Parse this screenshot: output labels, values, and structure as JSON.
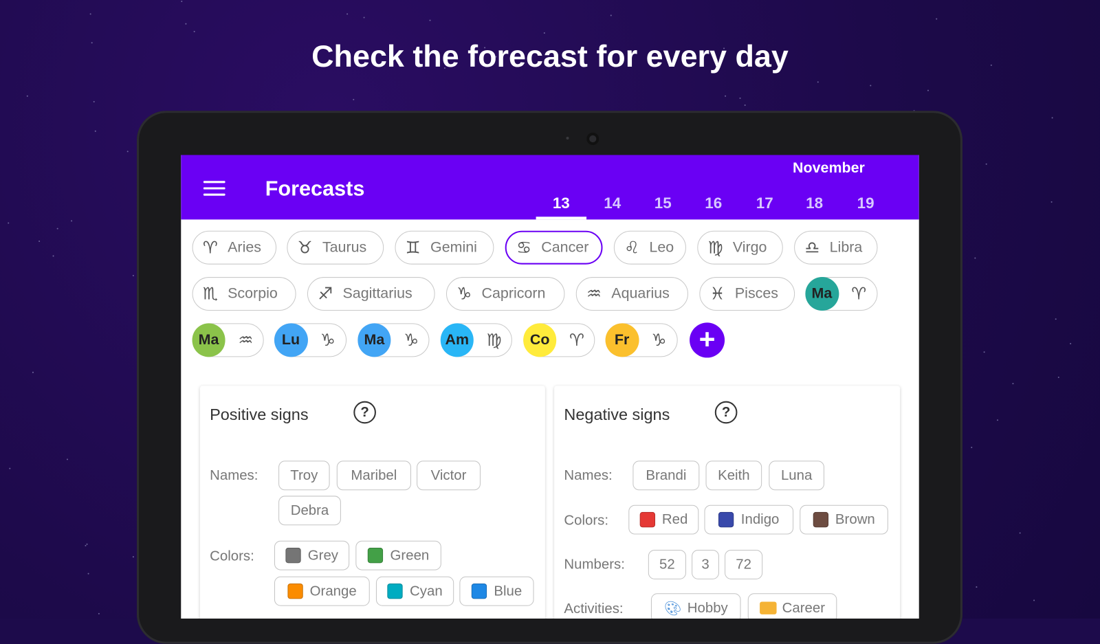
{
  "headline": "Check the forecast for every day",
  "appbar": {
    "title": "Forecasts",
    "month": "November",
    "dates": [
      "13",
      "14",
      "15",
      "16",
      "17",
      "18",
      "19"
    ],
    "selected_date": "13",
    "menu_icon": "hamburger-icon"
  },
  "accent": "#6a00f4",
  "signs": [
    {
      "label": "Aries",
      "glyph": "♈︎"
    },
    {
      "label": "Taurus",
      "glyph": "♉︎"
    },
    {
      "label": "Gemini",
      "glyph": "♊︎"
    },
    {
      "label": "Cancer",
      "glyph": "♋︎",
      "selected": true
    },
    {
      "label": "Leo",
      "glyph": "♌︎"
    },
    {
      "label": "Virgo",
      "glyph": "♍︎"
    },
    {
      "label": "Libra",
      "glyph": "♎︎"
    },
    {
      "label": "Scorpio",
      "glyph": "♏︎"
    },
    {
      "label": "Sagittarius",
      "glyph": "♐︎"
    },
    {
      "label": "Capricorn",
      "glyph": "♑︎"
    },
    {
      "label": "Aquarius",
      "glyph": "♒︎"
    },
    {
      "label": "Pisces",
      "glyph": "♓︎"
    }
  ],
  "people": [
    {
      "initials": "Ma",
      "glyph": "♈︎",
      "color": "#26a69a"
    },
    {
      "initials": "Ma",
      "glyph": "♒︎",
      "color": "#8bc34a"
    },
    {
      "initials": "Lu",
      "glyph": "♑︎",
      "color": "#42a5f5"
    },
    {
      "initials": "Ma",
      "glyph": "♑︎",
      "color": "#42a5f5"
    },
    {
      "initials": "Am",
      "glyph": "♍︎",
      "color": "#29b6f6"
    },
    {
      "initials": "Co",
      "glyph": "♈︎",
      "color": "#ffeb3b"
    },
    {
      "initials": "Fr",
      "glyph": "♑︎",
      "color": "#fbc02d"
    }
  ],
  "add_label": "+",
  "positive": {
    "title": "Positive signs",
    "names_label": "Names:",
    "names": [
      "Troy",
      "Maribel",
      "Victor",
      "Debra"
    ],
    "colors_label": "Colors:",
    "colors": [
      {
        "name": "Grey",
        "hex": "#757575"
      },
      {
        "name": "Green",
        "hex": "#43a047"
      },
      {
        "name": "Orange",
        "hex": "#fb8c00"
      },
      {
        "name": "Cyan",
        "hex": "#00acc1"
      },
      {
        "name": "Blue",
        "hex": "#1e88e5"
      }
    ]
  },
  "negative": {
    "title": "Negative signs",
    "names_label": "Names:",
    "names": [
      "Brandi",
      "Keith",
      "Luna"
    ],
    "colors_label": "Colors:",
    "colors": [
      {
        "name": "Red",
        "hex": "#e53935"
      },
      {
        "name": "Indigo",
        "hex": "#3949ab"
      },
      {
        "name": "Brown",
        "hex": "#6d4c41"
      }
    ],
    "numbers_label": "Numbers:",
    "numbers": [
      "52",
      "3",
      "72"
    ],
    "activities_label": "Activities:",
    "activities": [
      {
        "name": "Hobby",
        "icon": "palette-icon"
      },
      {
        "name": "Career",
        "icon": "briefcase-icon"
      }
    ]
  },
  "help_glyph": "?"
}
